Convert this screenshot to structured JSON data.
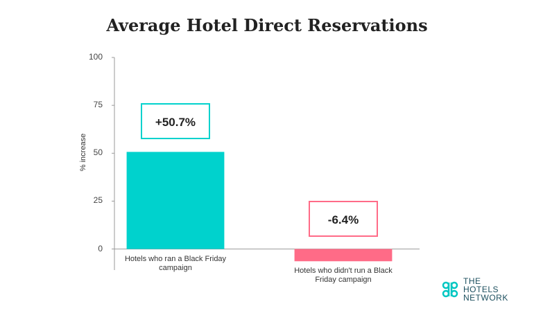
{
  "chart_data": {
    "type": "bar",
    "title": "Average Hotel Direct Reservations",
    "y_label": "% increase",
    "categories": [
      "Hotels who ran a Black Friday campaign",
      "Hotels who didn't run a Black Friday campaign"
    ],
    "values": [
      50.7,
      -6.4
    ],
    "value_labels": [
      "+50.7%",
      "-6.4%"
    ],
    "colors": [
      "#00d2cd",
      "#ff6b87"
    ],
    "ylim": [
      -11,
      100
    ],
    "yticks": [
      0,
      25,
      50,
      75,
      100
    ]
  },
  "logo": {
    "lines": [
      "THE",
      "HOTELS",
      "NETWORK"
    ]
  }
}
